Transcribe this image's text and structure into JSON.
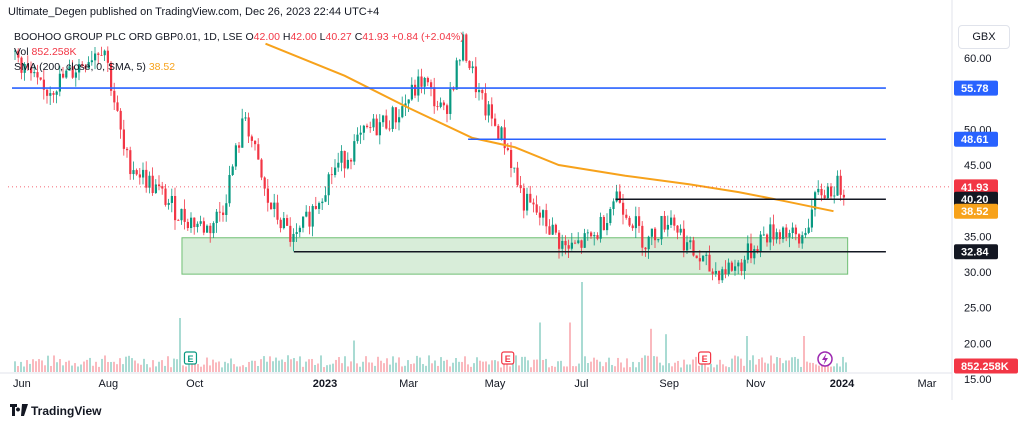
{
  "header": {
    "published": "Ultimate_Degen published on TradingView.com, Dec 26, 2023 22:44 UTC+4"
  },
  "legend": {
    "symbol": "BOOHOO GROUP PLC ORD GBP0.01, 1D, LSE",
    "o_label": "O",
    "o_value": "42.00",
    "h_label": "H",
    "h_value": "42.00",
    "l_label": "L",
    "l_value": "40.27",
    "c_label": "C",
    "c_value": "41.93",
    "change": "+0.84 (+2.04%)",
    "vol_label": "Vol",
    "vol_value": "852.258K",
    "sma_label": "SMA (200, close, 0, SMA, 5)",
    "sma_value": "38.52"
  },
  "currency": "GBX",
  "footer": {
    "brand": "TradingView"
  },
  "colors": {
    "up": "#089981",
    "down": "#f23645",
    "sma": "#f7a21b",
    "hline_blue": "#2962ff",
    "hline_black": "#131722",
    "zone_fill": "rgba(76,175,80,0.22)",
    "zone_stroke": "#6fbf73"
  },
  "chart_data": {
    "type": "candlestick",
    "x_ticks": [
      "Jun",
      "Aug",
      "Oct",
      "2023",
      "Mar",
      "May",
      "Jul",
      "Sep",
      "Nov",
      "2024",
      "Mar"
    ],
    "y_ticks": [
      60.0,
      50.0,
      45.0,
      35.0,
      30.0,
      25.0,
      20.0,
      15.0
    ],
    "price_labels": [
      {
        "label": "55.78",
        "value": 55.78,
        "color": "#2962ff"
      },
      {
        "label": "48.61",
        "value": 48.61,
        "color": "#2962ff"
      },
      {
        "label": "41.93",
        "value": 41.93,
        "color": "#f23645"
      },
      {
        "label": "40.20",
        "value": 40.2,
        "color": "#131722"
      },
      {
        "label": "38.52",
        "value": 38.52,
        "color": "#f7a21b"
      },
      {
        "label": "32.84",
        "value": 32.84,
        "color": "#131722"
      },
      {
        "label": "852.258K",
        "value": 852258,
        "color": "#f23645",
        "pane": "volume"
      }
    ],
    "horizontal_lines": [
      {
        "value": 55.78,
        "style": "blue",
        "from": "2022-05-25",
        "to": "2024-02-01"
      },
      {
        "value": 48.61,
        "style": "blue",
        "from": "2023-04-12",
        "to": "2024-02-01"
      },
      {
        "value": 40.2,
        "style": "black",
        "from": "2023-07-25",
        "to": "2024-02-01"
      },
      {
        "value": 32.84,
        "style": "black",
        "from": "2022-12-10",
        "to": "2024-02-01"
      }
    ],
    "support_zone": {
      "from": "2022-09-22",
      "to": "2024-01-05",
      "high": 34.8,
      "low": 29.7
    },
    "price_path": [
      {
        "date": "2022-05-25",
        "close": 61
      },
      {
        "date": "2022-06-15",
        "close": 55
      },
      {
        "date": "2022-07-05",
        "close": 58
      },
      {
        "date": "2022-07-28",
        "close": 62
      },
      {
        "date": "2022-08-12",
        "close": 46
      },
      {
        "date": "2022-09-01",
        "close": 42
      },
      {
        "date": "2022-09-20",
        "close": 38
      },
      {
        "date": "2022-10-10",
        "close": 36
      },
      {
        "date": "2022-10-20",
        "close": 39
      },
      {
        "date": "2022-11-05",
        "close": 52
      },
      {
        "date": "2022-11-20",
        "close": 40
      },
      {
        "date": "2022-12-10",
        "close": 34
      },
      {
        "date": "2023-01-05",
        "close": 44
      },
      {
        "date": "2023-02-01",
        "close": 50
      },
      {
        "date": "2023-02-20",
        "close": 52
      },
      {
        "date": "2023-03-10",
        "close": 57
      },
      {
        "date": "2023-03-25",
        "close": 52
      },
      {
        "date": "2023-04-08",
        "close": 62
      },
      {
        "date": "2023-04-20",
        "close": 54
      },
      {
        "date": "2023-05-08",
        "close": 48
      },
      {
        "date": "2023-05-20",
        "close": 40
      },
      {
        "date": "2023-06-05",
        "close": 37
      },
      {
        "date": "2023-06-20",
        "close": 33
      },
      {
        "date": "2023-07-10",
        "close": 35
      },
      {
        "date": "2023-07-25",
        "close": 41
      },
      {
        "date": "2023-08-15",
        "close": 34
      },
      {
        "date": "2023-09-01",
        "close": 38
      },
      {
        "date": "2023-09-15",
        "close": 33
      },
      {
        "date": "2023-10-01",
        "close": 30
      },
      {
        "date": "2023-10-20",
        "close": 31
      },
      {
        "date": "2023-11-05",
        "close": 35
      },
      {
        "date": "2023-11-20",
        "close": 36
      },
      {
        "date": "2023-12-01",
        "close": 34
      },
      {
        "date": "2023-12-15",
        "close": 41
      },
      {
        "date": "2023-12-26",
        "close": 41.93
      }
    ],
    "sma200": [
      {
        "date": "2022-11-20",
        "value": 62
      },
      {
        "date": "2023-01-15",
        "value": 57.5
      },
      {
        "date": "2023-03-01",
        "value": 53
      },
      {
        "date": "2023-04-15",
        "value": 48.8
      },
      {
        "date": "2023-05-15",
        "value": 47.5
      },
      {
        "date": "2023-06-15",
        "value": 45
      },
      {
        "date": "2023-08-01",
        "value": 43.5
      },
      {
        "date": "2023-09-15",
        "value": 42.3
      },
      {
        "date": "2023-10-20",
        "value": 41.2
      },
      {
        "date": "2023-11-20",
        "value": 40
      },
      {
        "date": "2023-12-26",
        "value": 38.52
      }
    ],
    "volume_spikes": [
      {
        "date": "2023-07-01",
        "volume": 1.0
      },
      {
        "date": "2023-06-01",
        "volume": 0.55
      },
      {
        "date": "2023-06-23",
        "volume": 0.55
      },
      {
        "date": "2023-08-18",
        "volume": 0.48
      },
      {
        "date": "2023-08-28",
        "volume": 0.42
      },
      {
        "date": "2023-10-25",
        "volume": 0.4
      },
      {
        "date": "2023-12-05",
        "volume": 0.4
      },
      {
        "date": "2022-09-20",
        "volume": 0.6
      },
      {
        "date": "2023-01-20",
        "volume": 0.35
      }
    ],
    "event_markers": [
      {
        "date": "2022-09-28",
        "label": "E",
        "color": "#089981"
      },
      {
        "date": "2023-05-10",
        "label": "E",
        "color": "#f23645"
      },
      {
        "date": "2023-09-26",
        "label": "E",
        "color": "#f23645"
      },
      {
        "date": "2023-12-20",
        "label": "⚡",
        "color": "#9c27b0"
      }
    ]
  }
}
